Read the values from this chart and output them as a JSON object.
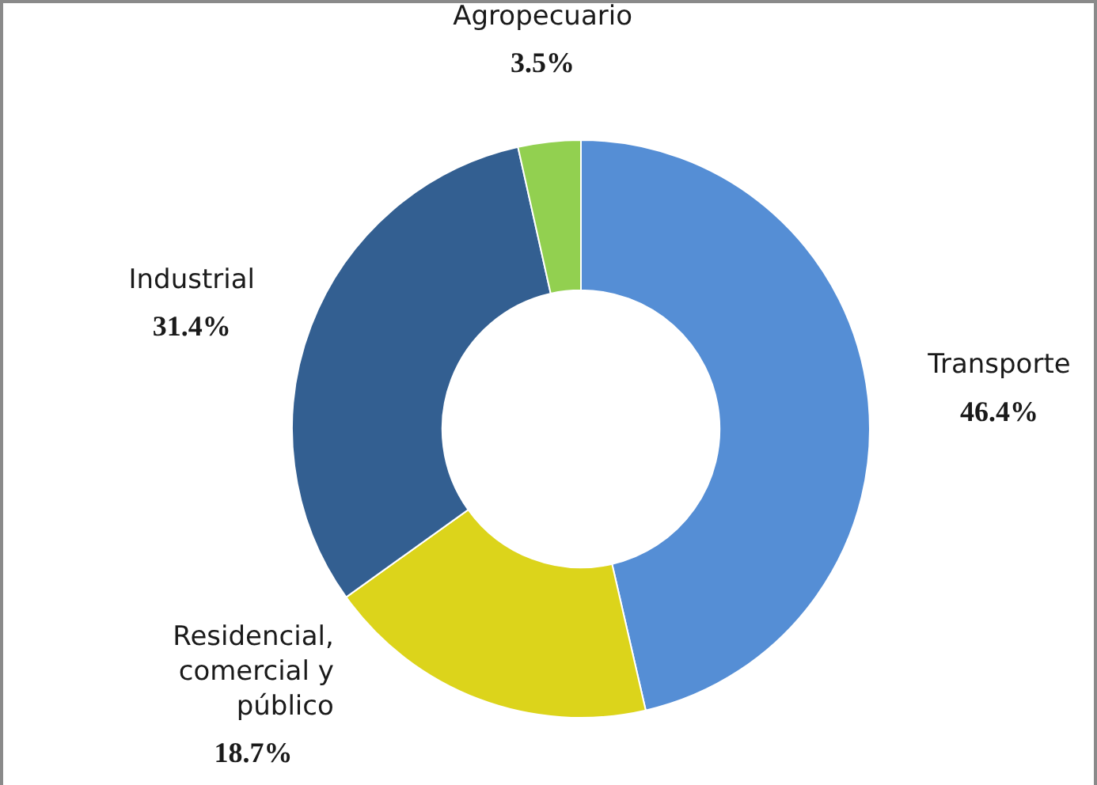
{
  "chart_data": {
    "type": "donut",
    "categories": [
      "Transporte",
      "Residencial, comercial y público",
      "Industrial",
      "Agropecuario"
    ],
    "values": [
      46.4,
      18.7,
      31.4,
      3.5
    ],
    "colors": [
      "#558ed5",
      "#dcd41b",
      "#335f91",
      "#92d050"
    ],
    "value_labels": [
      "46.4%",
      "18.7%",
      "31.4%",
      "3.5%"
    ],
    "legend": false
  }
}
